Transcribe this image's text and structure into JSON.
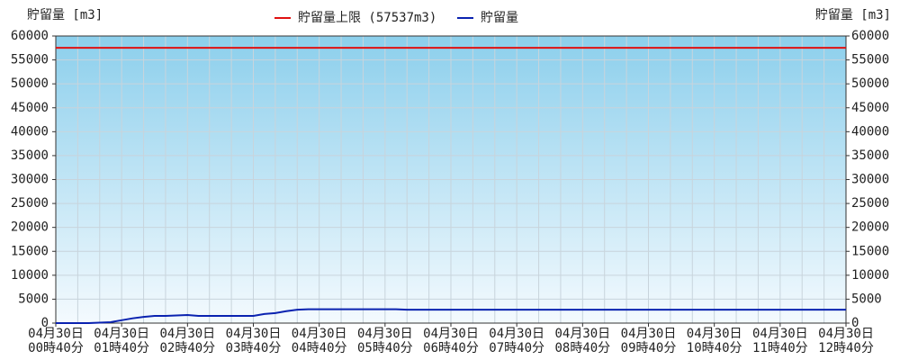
{
  "chart_data": {
    "type": "line",
    "y_label": "貯留量 [m3]",
    "y2_label": "貯留量 [m3]",
    "limit": {
      "name": "貯留量上限 (57537m3)",
      "value": 57537,
      "color": "#e01010"
    },
    "categories": [
      [
        "04月30日",
        "00時40分"
      ],
      null,
      null,
      null,
      null,
      null,
      [
        "04月30日",
        "01時40分"
      ],
      null,
      null,
      null,
      null,
      null,
      [
        "04月30日",
        "02時40分"
      ],
      null,
      null,
      null,
      null,
      null,
      [
        "04月30日",
        "03時40分"
      ],
      null,
      null,
      null,
      null,
      null,
      [
        "04月30日",
        "04時40分"
      ],
      null,
      null,
      null,
      null,
      null,
      [
        "04月30日",
        "05時40分"
      ],
      null,
      null,
      null,
      null,
      null,
      [
        "04月30日",
        "06時40分"
      ],
      null,
      null,
      null,
      null,
      null,
      [
        "04月30日",
        "07時40分"
      ],
      null,
      null,
      null,
      null,
      null,
      [
        "04月30日",
        "08時40分"
      ],
      null,
      null,
      null,
      null,
      null,
      [
        "04月30日",
        "09時40分"
      ],
      null,
      null,
      null,
      null,
      null,
      [
        "04月30日",
        "10時40分"
      ],
      null,
      null,
      null,
      null,
      null,
      [
        "04月30日",
        "11時40分"
      ],
      null,
      null,
      null,
      null,
      null,
      [
        "04月30日",
        "12時40分"
      ]
    ],
    "series": [
      {
        "name": "貯留量",
        "color": "#0a22b0",
        "values": [
          0,
          0,
          0,
          0,
          100,
          200,
          600,
          1000,
          1300,
          1500,
          1500,
          1600,
          1700,
          1500,
          1500,
          1500,
          1500,
          1500,
          1500,
          1900,
          2100,
          2500,
          2800,
          2900,
          2900,
          2900,
          2900,
          2900,
          2900,
          2900,
          2900,
          2900,
          2800,
          2800,
          2800,
          2800,
          2800,
          2800,
          2800,
          2800,
          2800,
          2800,
          2800,
          2800,
          2800,
          2800,
          2800,
          2800,
          2800,
          2800,
          2800,
          2800,
          2800,
          2800,
          2800,
          2800,
          2800,
          2800,
          2800,
          2800,
          2800,
          2800,
          2800,
          2800,
          2800,
          2800,
          2800,
          2800,
          2800,
          2800,
          2800,
          2800,
          2800
        ]
      }
    ],
    "ylim": [
      0,
      60000
    ],
    "yticks": [
      0,
      5000,
      10000,
      15000,
      20000,
      25000,
      30000,
      35000,
      40000,
      45000,
      50000,
      55000,
      60000
    ],
    "grid": true
  }
}
